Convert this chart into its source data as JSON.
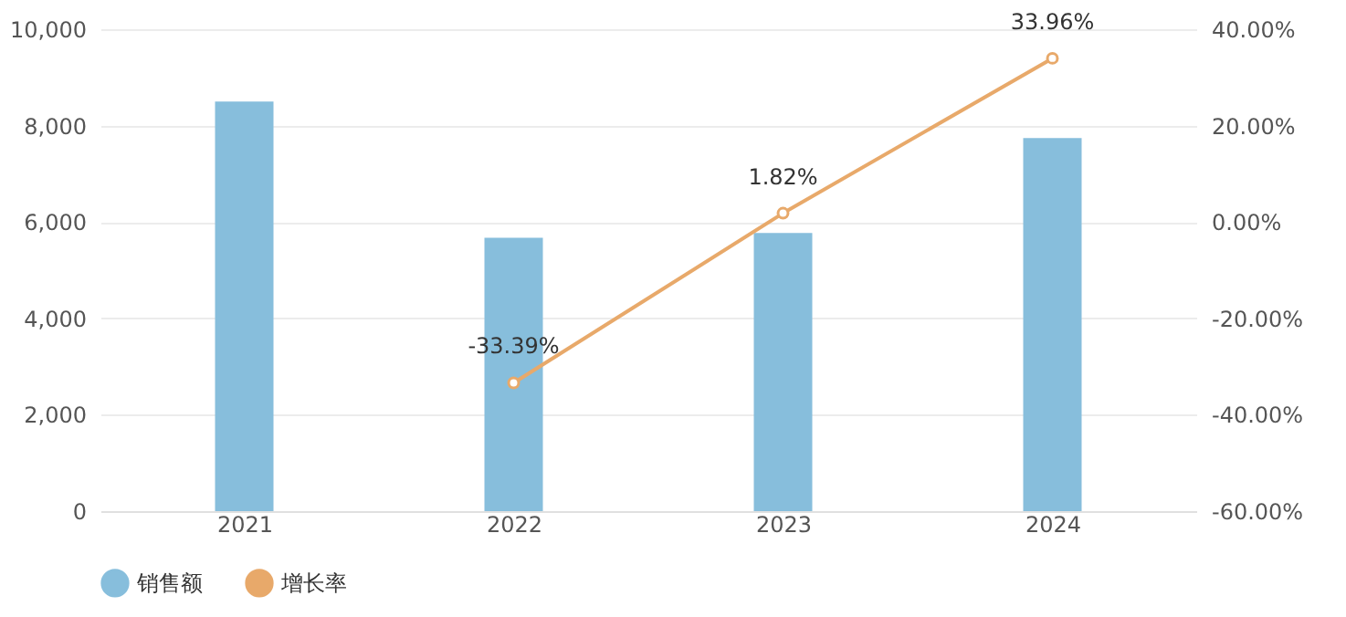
{
  "chart_data": {
    "type": "bar",
    "categories": [
      "2021",
      "2022",
      "2023",
      "2024"
    ],
    "series": [
      {
        "name": "销售额",
        "color": "#87bedc",
        "values": [
          8500,
          5670,
          5770,
          7740
        ]
      },
      {
        "name": "增长率",
        "type": "line",
        "axis": "y2",
        "color": "#e8a96a",
        "marker": "circle",
        "line_style": "solid",
        "values": [
          null,
          -33.39,
          1.82,
          33.96
        ],
        "value_labels": [
          null,
          "-33.39%",
          "1.82%",
          "33.96%"
        ]
      }
    ],
    "ylim": [
      0,
      10000
    ],
    "yticks": [
      0,
      {
        "value": 2000,
        "label": "2,000"
      },
      {
        "value": 4000,
        "label": "4,000"
      },
      {
        "value": 6000,
        "label": "6,000"
      },
      {
        "value": 8000,
        "label": "8,000"
      },
      {
        "value": 10000,
        "label": "10,000"
      }
    ],
    "y2lim": [
      -60,
      40
    ],
    "y2ticks": [
      {
        "value": -60,
        "label": "-60.00%"
      },
      {
        "value": -40,
        "label": "-40.00%"
      },
      {
        "value": -20,
        "label": "-20.00%"
      },
      {
        "value": 0,
        "label": "0.00%"
      },
      {
        "value": 20,
        "label": "20.00%"
      },
      {
        "value": 40,
        "label": "40.00%"
      }
    ],
    "grid": "y",
    "legend": "bottom"
  }
}
